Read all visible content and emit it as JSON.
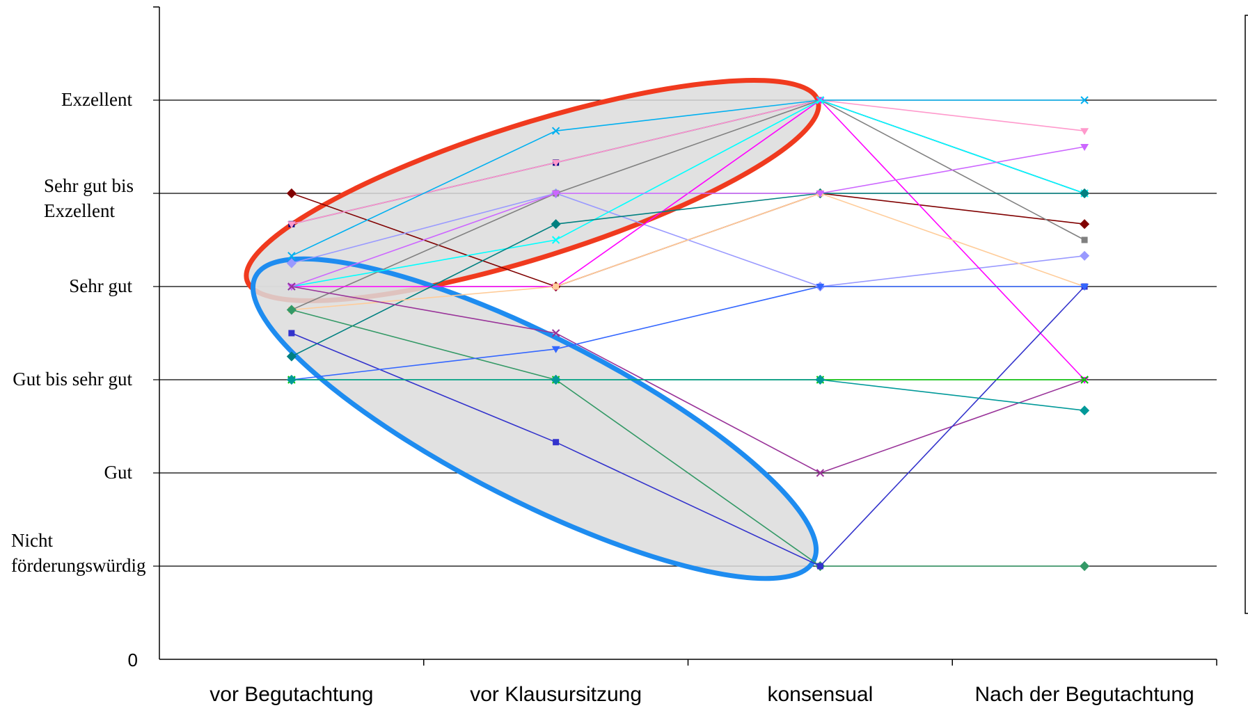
{
  "chart_data": {
    "type": "line",
    "categories": [
      "vor Begutachtung",
      "vor Klausursitzung",
      "konsensual",
      "Nach der Begutachtung"
    ],
    "y_axis": {
      "min": 0,
      "max": 7,
      "zero_label": "0",
      "levels": [
        {
          "value": 1,
          "lines": [
            "Nicht",
            "förderungswürdig"
          ]
        },
        {
          "value": 2,
          "lines": [
            "Gut"
          ]
        },
        {
          "value": 3,
          "lines": [
            "Gut bis sehr gut"
          ]
        },
        {
          "value": 4,
          "lines": [
            "Sehr gut"
          ]
        },
        {
          "value": 5,
          "lines": [
            "Sehr gut bis",
            "Exzellent"
          ]
        },
        {
          "value": 6,
          "lines": [
            "Exzellent"
          ]
        }
      ]
    },
    "grid": true,
    "legend": "right (empty box)",
    "series": [
      {
        "color": "#800000",
        "values": [
          5.0,
          4.0,
          5.0,
          4.67
        ]
      },
      {
        "color": "#000080",
        "values": [
          4.67,
          5.33,
          6.0,
          5.0
        ]
      },
      {
        "color": "#FF99CC",
        "values": [
          4.67,
          5.33,
          6.0,
          5.67
        ]
      },
      {
        "color": "#00B0F0",
        "values": [
          4.33,
          5.67,
          6.0,
          6.0
        ]
      },
      {
        "color": "#9999FF",
        "values": [
          4.25,
          5.0,
          4.0,
          4.33
        ]
      },
      {
        "color": "#808080",
        "values": [
          3.75,
          5.0,
          6.0,
          4.5
        ]
      },
      {
        "color": "#FF00FF",
        "values": [
          4.0,
          4.0,
          6.0,
          3.0
        ]
      },
      {
        "color": "#00FFFF",
        "values": [
          4.0,
          4.5,
          6.0,
          5.0
        ]
      },
      {
        "color": "#008080",
        "values": [
          3.25,
          4.67,
          5.0,
          5.0
        ]
      },
      {
        "color": "#FFCC99",
        "values": [
          3.75,
          4.0,
          5.0,
          4.0
        ]
      },
      {
        "color": "#CC66FF",
        "values": [
          4.0,
          5.0,
          5.0,
          5.5
        ]
      },
      {
        "color": "#993399",
        "values": [
          4.0,
          3.5,
          2.0,
          3.0
        ]
      },
      {
        "color": "#339966",
        "values": [
          3.75,
          3.0,
          1.0,
          1.0
        ]
      },
      {
        "color": "#3333CC",
        "values": [
          3.5,
          2.33,
          1.0,
          4.0
        ]
      },
      {
        "color": "#3366FF",
        "values": [
          3.0,
          3.33,
          4.0,
          4.0
        ]
      },
      {
        "color": "#00CC00",
        "values": [
          3.0,
          3.0,
          3.0,
          3.0
        ]
      },
      {
        "color": "#009999",
        "values": [
          3.0,
          3.0,
          3.0,
          2.67
        ]
      }
    ],
    "annotations": [
      {
        "shape": "ellipse",
        "color": "#F03A1E",
        "fill": "#DCDCDC",
        "around": "upper group"
      },
      {
        "shape": "ellipse",
        "color": "#1E8CF0",
        "fill": "#DCDCDC",
        "around": "lower group"
      }
    ]
  }
}
